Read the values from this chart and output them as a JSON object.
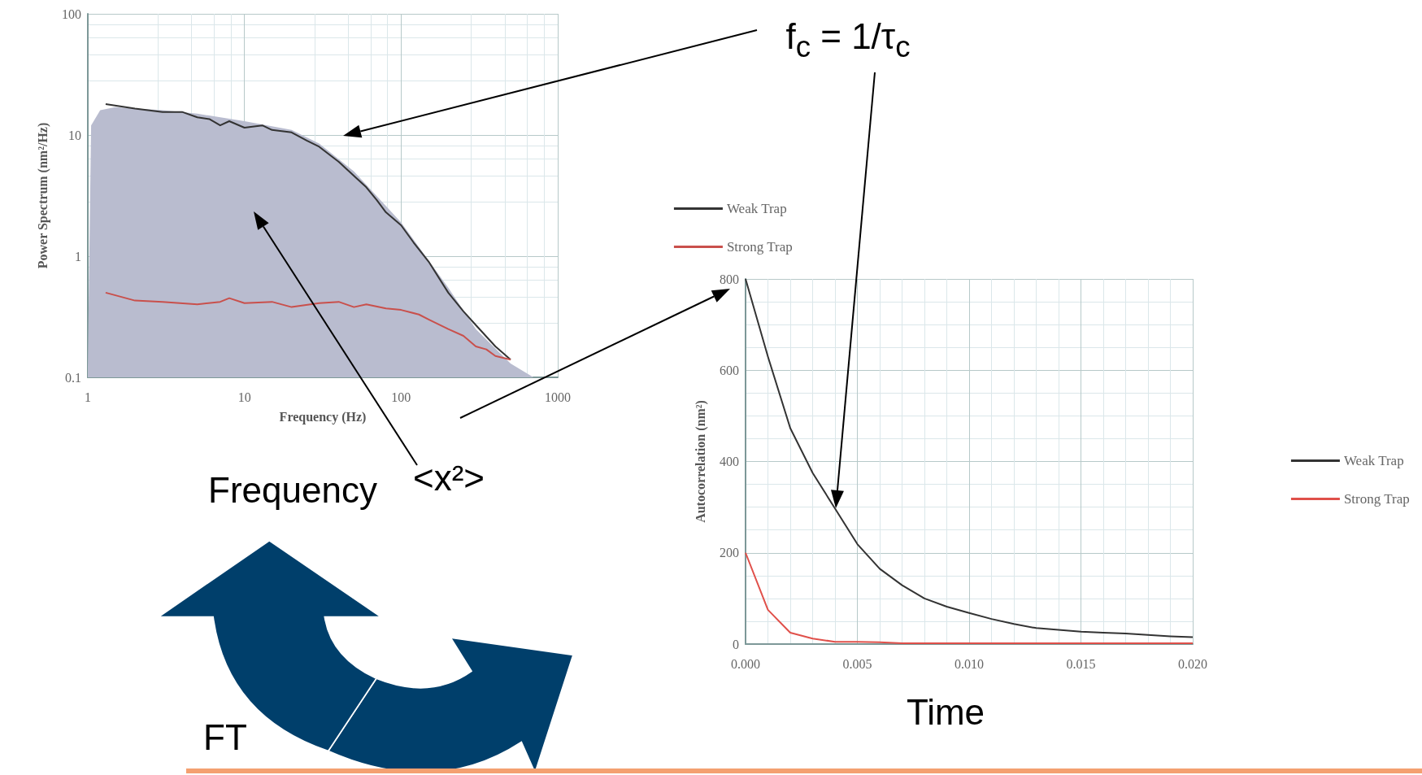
{
  "chart_data": [
    {
      "type": "line",
      "xlabel": "Frequency (Hz)",
      "ylabel": "Power Spectrum (nm²/Hz)",
      "log": "xy",
      "xlim": [
        1,
        1000
      ],
      "ylim": [
        0.1,
        100
      ],
      "xticks": [
        1,
        10,
        100,
        1000
      ],
      "yticks": [
        0.1,
        1,
        10,
        100
      ],
      "grid": true,
      "legend": "right",
      "marker": "none",
      "annotations": [
        "f$_{c}$ = 1/τ$_{c}$",
        "<x²>",
        "Frequency",
        "FT"
      ],
      "series": [
        {
          "type": "area",
          "color": "#b9bccf",
          "x": [
            1,
            1.05,
            1.2,
            1.5,
            2,
            3,
            5,
            10,
            20,
            30,
            50,
            100,
            200,
            300,
            500,
            700
          ],
          "values": [
            0.12,
            12,
            16,
            17,
            16.5,
            16,
            15,
            13,
            11,
            8.5,
            5,
            1.9,
            0.55,
            0.25,
            0.13,
            0.1
          ]
        },
        {
          "name": "Weak Trap",
          "color": "#333333",
          "x": [
            1.3,
            2,
            3,
            4,
            5,
            6,
            7,
            8,
            10,
            13,
            15,
            20,
            25,
            30,
            40,
            50,
            60,
            70,
            80,
            100,
            120,
            150,
            200,
            250,
            300,
            400,
            500
          ],
          "values": [
            18,
            16.5,
            15.5,
            15.5,
            14,
            13.5,
            12,
            13,
            11.5,
            12,
            11,
            10.5,
            9,
            8,
            6,
            4.6,
            3.7,
            2.9,
            2.3,
            1.8,
            1.3,
            0.9,
            0.5,
            0.35,
            0.27,
            0.18,
            0.14
          ]
        },
        {
          "name": "Strong Trap",
          "color": "#c9504c",
          "x": [
            1.3,
            2,
            3,
            5,
            7,
            8,
            10,
            15,
            20,
            30,
            40,
            50,
            60,
            80,
            100,
            130,
            150,
            200,
            250,
            300,
            350,
            400,
            500
          ],
          "values": [
            0.5,
            0.43,
            0.42,
            0.4,
            0.42,
            0.45,
            0.41,
            0.42,
            0.38,
            0.41,
            0.42,
            0.38,
            0.4,
            0.37,
            0.36,
            0.33,
            0.3,
            0.25,
            0.22,
            0.18,
            0.17,
            0.15,
            0.14
          ]
        }
      ]
    },
    {
      "type": "line",
      "ylabel": "Autocorrelation (nm²)",
      "xlim": [
        0,
        0.02
      ],
      "ylim": [
        0,
        800
      ],
      "xticks": [
        {
          "value": 0,
          "label": "0.000"
        },
        {
          "value": 0.005,
          "label": "0.005"
        },
        {
          "value": 0.01,
          "label": "0.010"
        },
        {
          "value": 0.015,
          "label": "0.015"
        },
        {
          "value": 0.02,
          "label": "0.020"
        }
      ],
      "yticks": [
        0,
        200,
        400,
        600,
        800
      ],
      "grid": true,
      "legend": "right",
      "marker": "none",
      "annotations": [
        "Time"
      ],
      "x": [
        0,
        0.001,
        0.002,
        0.003,
        0.004,
        0.005,
        0.006,
        0.007,
        0.008,
        0.009,
        0.01,
        0.011,
        0.012,
        0.013,
        0.014,
        0.015,
        0.016,
        0.017,
        0.018,
        0.019,
        0.02
      ],
      "series": [
        {
          "name": "Weak Trap",
          "color": "#333333",
          "values": [
            800,
            630,
            473,
            375,
            297,
            219,
            165,
            129,
            100,
            82,
            68,
            55,
            44,
            35,
            31,
            27,
            25,
            23,
            20,
            17,
            15
          ]
        },
        {
          "name": "Strong Trap",
          "color": "#e0504a",
          "values": [
            200,
            75,
            25,
            12,
            5,
            5,
            4,
            2,
            2,
            2,
            2,
            2,
            2,
            2,
            2,
            2,
            2,
            2,
            2,
            2,
            2
          ]
        }
      ]
    }
  ]
}
